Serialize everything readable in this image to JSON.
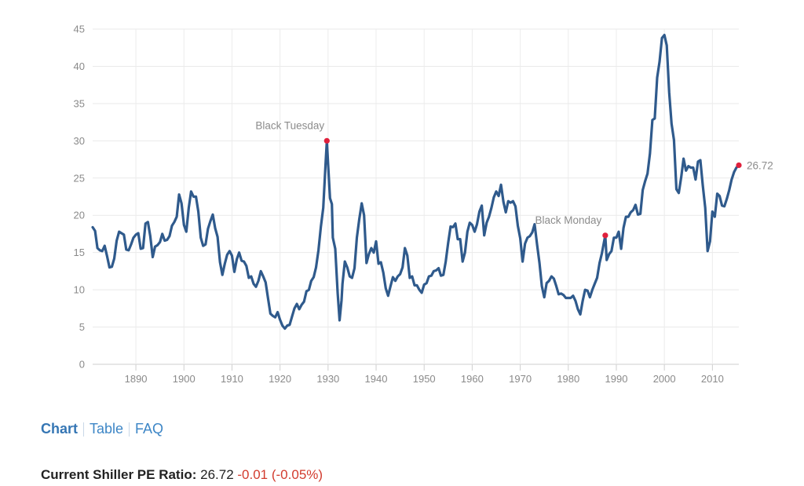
{
  "chart_data": {
    "type": "line",
    "title": "",
    "xlabel": "",
    "ylabel": "",
    "xlim": [
      1881,
      2015.5
    ],
    "ylim": [
      0,
      45
    ],
    "y_ticks": [
      0,
      5,
      10,
      15,
      20,
      25,
      30,
      35,
      40,
      45
    ],
    "x_ticks": [
      1890,
      1900,
      1910,
      1920,
      1930,
      1940,
      1950,
      1960,
      1970,
      1980,
      1990,
      2000,
      2010
    ],
    "grid": true,
    "line_color": "#2f5a8c",
    "marker_color": "#e0203c",
    "series": [
      {
        "name": "Shiller PE Ratio",
        "points": [
          [
            1881,
            18.4
          ],
          [
            1881.5,
            17.9
          ],
          [
            1882,
            15.6
          ],
          [
            1882.5,
            15.3
          ],
          [
            1883,
            15.2
          ],
          [
            1883.5,
            15.9
          ],
          [
            1884,
            14.5
          ],
          [
            1884.5,
            13.0
          ],
          [
            1885,
            13.1
          ],
          [
            1885.5,
            14.2
          ],
          [
            1886,
            16.6
          ],
          [
            1886.5,
            17.8
          ],
          [
            1887,
            17.6
          ],
          [
            1887.5,
            17.4
          ],
          [
            1888,
            15.4
          ],
          [
            1888.5,
            15.3
          ],
          [
            1889,
            16.1
          ],
          [
            1889.5,
            17.0
          ],
          [
            1890,
            17.4
          ],
          [
            1890.5,
            17.6
          ],
          [
            1891,
            15.5
          ],
          [
            1891.5,
            15.6
          ],
          [
            1892,
            18.9
          ],
          [
            1892.5,
            19.1
          ],
          [
            1893,
            17.2
          ],
          [
            1893.5,
            14.4
          ],
          [
            1894,
            15.8
          ],
          [
            1894.5,
            16.0
          ],
          [
            1895,
            16.4
          ],
          [
            1895.5,
            17.5
          ],
          [
            1896,
            16.6
          ],
          [
            1896.5,
            16.7
          ],
          [
            1897,
            17.2
          ],
          [
            1897.5,
            18.6
          ],
          [
            1898,
            19.1
          ],
          [
            1898.5,
            19.8
          ],
          [
            1899,
            22.8
          ],
          [
            1899.5,
            21.6
          ],
          [
            1900,
            18.7
          ],
          [
            1900.5,
            17.8
          ],
          [
            1901,
            21.0
          ],
          [
            1901.5,
            23.2
          ],
          [
            1902,
            22.5
          ],
          [
            1902.5,
            22.5
          ],
          [
            1903,
            20.5
          ],
          [
            1903.5,
            17.0
          ],
          [
            1904,
            15.9
          ],
          [
            1904.5,
            16.1
          ],
          [
            1905,
            18.2
          ],
          [
            1905.5,
            19.2
          ],
          [
            1906,
            20.1
          ],
          [
            1906.5,
            18.3
          ],
          [
            1907,
            17.1
          ],
          [
            1907.5,
            13.7
          ],
          [
            1908,
            12.0
          ],
          [
            1908.5,
            13.5
          ],
          [
            1909,
            14.7
          ],
          [
            1909.5,
            15.2
          ],
          [
            1910,
            14.6
          ],
          [
            1910.5,
            12.4
          ],
          [
            1911,
            14.1
          ],
          [
            1911.5,
            15.0
          ],
          [
            1912,
            13.9
          ],
          [
            1912.5,
            13.8
          ],
          [
            1913,
            13.2
          ],
          [
            1913.5,
            11.6
          ],
          [
            1914,
            11.8
          ],
          [
            1914.5,
            10.8
          ],
          [
            1915,
            10.4
          ],
          [
            1915.5,
            11.2
          ],
          [
            1916,
            12.5
          ],
          [
            1916.5,
            11.8
          ],
          [
            1917,
            11.0
          ],
          [
            1917.5,
            8.9
          ],
          [
            1918,
            6.8
          ],
          [
            1918.5,
            6.5
          ],
          [
            1919,
            6.3
          ],
          [
            1919.5,
            7.0
          ],
          [
            1920,
            6.0
          ],
          [
            1920.5,
            5.2
          ],
          [
            1921,
            4.8
          ],
          [
            1921.5,
            5.2
          ],
          [
            1922,
            5.3
          ],
          [
            1922.5,
            6.4
          ],
          [
            1923,
            7.5
          ],
          [
            1923.5,
            8.1
          ],
          [
            1924,
            7.4
          ],
          [
            1924.5,
            8.0
          ],
          [
            1925,
            8.4
          ],
          [
            1925.5,
            9.8
          ],
          [
            1926,
            10.0
          ],
          [
            1926.5,
            11.2
          ],
          [
            1927,
            11.7
          ],
          [
            1927.5,
            13.0
          ],
          [
            1928,
            15.3
          ],
          [
            1928.5,
            18.5
          ],
          [
            1929,
            21.0
          ],
          [
            1929.5,
            27.2
          ],
          [
            1929.75,
            30.0
          ],
          [
            1930,
            27.0
          ],
          [
            1930.4,
            22.3
          ],
          [
            1930.8,
            21.5
          ],
          [
            1931,
            17.0
          ],
          [
            1931.5,
            15.5
          ],
          [
            1932,
            9.5
          ],
          [
            1932.4,
            5.9
          ],
          [
            1932.8,
            8.6
          ],
          [
            1933,
            10.8
          ],
          [
            1933.5,
            13.8
          ],
          [
            1934,
            13.0
          ],
          [
            1934.5,
            11.8
          ],
          [
            1935,
            11.6
          ],
          [
            1935.5,
            12.9
          ],
          [
            1936,
            17.0
          ],
          [
            1936.5,
            19.5
          ],
          [
            1937,
            21.6
          ],
          [
            1937.5,
            20.0
          ],
          [
            1938,
            13.6
          ],
          [
            1938.5,
            14.8
          ],
          [
            1939,
            15.6
          ],
          [
            1939.5,
            15.0
          ],
          [
            1940,
            16.5
          ],
          [
            1940.5,
            13.5
          ],
          [
            1941,
            13.7
          ],
          [
            1941.5,
            12.3
          ],
          [
            1942,
            10.2
          ],
          [
            1942.5,
            9.2
          ],
          [
            1943,
            10.5
          ],
          [
            1943.5,
            11.7
          ],
          [
            1944,
            11.2
          ],
          [
            1944.5,
            11.8
          ],
          [
            1945,
            12.1
          ],
          [
            1945.5,
            13.0
          ],
          [
            1946,
            15.6
          ],
          [
            1946.5,
            14.6
          ],
          [
            1947,
            11.6
          ],
          [
            1947.5,
            11.8
          ],
          [
            1948,
            10.6
          ],
          [
            1948.5,
            10.6
          ],
          [
            1949,
            10.0
          ],
          [
            1949.5,
            9.6
          ],
          [
            1950,
            10.7
          ],
          [
            1950.5,
            10.9
          ],
          [
            1951,
            11.8
          ],
          [
            1951.5,
            11.9
          ],
          [
            1952,
            12.5
          ],
          [
            1952.5,
            12.6
          ],
          [
            1953,
            12.9
          ],
          [
            1953.5,
            11.9
          ],
          [
            1954,
            12.0
          ],
          [
            1954.5,
            13.8
          ],
          [
            1955,
            16.3
          ],
          [
            1955.5,
            18.5
          ],
          [
            1956,
            18.4
          ],
          [
            1956.5,
            18.9
          ],
          [
            1957,
            16.8
          ],
          [
            1957.5,
            16.8
          ],
          [
            1958,
            13.8
          ],
          [
            1958.5,
            15.0
          ],
          [
            1959,
            17.8
          ],
          [
            1959.5,
            19.0
          ],
          [
            1960,
            18.7
          ],
          [
            1960.5,
            17.8
          ],
          [
            1961,
            18.8
          ],
          [
            1961.5,
            20.5
          ],
          [
            1962,
            21.3
          ],
          [
            1962.5,
            17.3
          ],
          [
            1963,
            19.0
          ],
          [
            1963.5,
            19.8
          ],
          [
            1964,
            21.0
          ],
          [
            1964.5,
            22.4
          ],
          [
            1965,
            23.2
          ],
          [
            1965.5,
            22.6
          ],
          [
            1966,
            24.1
          ],
          [
            1966.5,
            21.8
          ],
          [
            1967,
            20.4
          ],
          [
            1967.5,
            21.9
          ],
          [
            1968,
            21.7
          ],
          [
            1968.5,
            21.9
          ],
          [
            1969,
            21.2
          ],
          [
            1969.5,
            18.6
          ],
          [
            1970,
            16.9
          ],
          [
            1970.5,
            13.8
          ],
          [
            1971,
            16.2
          ],
          [
            1971.5,
            17.0
          ],
          [
            1972,
            17.2
          ],
          [
            1972.5,
            17.7
          ],
          [
            1973,
            18.8
          ],
          [
            1973.5,
            16.1
          ],
          [
            1974,
            13.6
          ],
          [
            1974.5,
            10.5
          ],
          [
            1975,
            9.0
          ],
          [
            1975.5,
            10.9
          ],
          [
            1976,
            11.2
          ],
          [
            1976.5,
            11.8
          ],
          [
            1977,
            11.5
          ],
          [
            1977.5,
            10.5
          ],
          [
            1978,
            9.4
          ],
          [
            1978.5,
            9.5
          ],
          [
            1979,
            9.3
          ],
          [
            1979.5,
            8.9
          ],
          [
            1980,
            8.9
          ],
          [
            1980.5,
            8.9
          ],
          [
            1981,
            9.2
          ],
          [
            1981.5,
            8.5
          ],
          [
            1982,
            7.4
          ],
          [
            1982.5,
            6.7
          ],
          [
            1983,
            8.5
          ],
          [
            1983.5,
            10.0
          ],
          [
            1984,
            9.9
          ],
          [
            1984.5,
            9.0
          ],
          [
            1985,
            10.0
          ],
          [
            1985.5,
            10.8
          ],
          [
            1986,
            11.6
          ],
          [
            1986.5,
            13.6
          ],
          [
            1987,
            14.9
          ],
          [
            1987.7,
            17.3
          ],
          [
            1988,
            14.0
          ],
          [
            1988.5,
            14.8
          ],
          [
            1989,
            15.2
          ],
          [
            1989.5,
            17.0
          ],
          [
            1990,
            17.0
          ],
          [
            1990.5,
            17.8
          ],
          [
            1991,
            15.5
          ],
          [
            1991.5,
            18.3
          ],
          [
            1992,
            19.8
          ],
          [
            1992.5,
            19.8
          ],
          [
            1993,
            20.4
          ],
          [
            1993.5,
            20.7
          ],
          [
            1994,
            21.4
          ],
          [
            1994.5,
            20.1
          ],
          [
            1995,
            20.2
          ],
          [
            1995.5,
            23.4
          ],
          [
            1996,
            24.6
          ],
          [
            1996.5,
            25.6
          ],
          [
            1997,
            28.3
          ],
          [
            1997.5,
            32.8
          ],
          [
            1998,
            33.0
          ],
          [
            1998.5,
            38.5
          ],
          [
            1999,
            40.6
          ],
          [
            1999.5,
            43.8
          ],
          [
            2000,
            44.2
          ],
          [
            2000.5,
            42.8
          ],
          [
            2001,
            36.5
          ],
          [
            2001.5,
            32.3
          ],
          [
            2002,
            30.1
          ],
          [
            2002.5,
            23.5
          ],
          [
            2003,
            23.0
          ],
          [
            2003.5,
            25.1
          ],
          [
            2004,
            27.6
          ],
          [
            2004.5,
            26.0
          ],
          [
            2005,
            26.6
          ],
          [
            2005.5,
            26.4
          ],
          [
            2006,
            26.4
          ],
          [
            2006.5,
            24.8
          ],
          [
            2007,
            27.2
          ],
          [
            2007.5,
            27.4
          ],
          [
            2008,
            24.0
          ],
          [
            2008.5,
            21.0
          ],
          [
            2009,
            15.2
          ],
          [
            2009.5,
            16.5
          ],
          [
            2010,
            20.5
          ],
          [
            2010.5,
            19.8
          ],
          [
            2011,
            22.9
          ],
          [
            2011.5,
            22.6
          ],
          [
            2012,
            21.3
          ],
          [
            2012.5,
            21.2
          ],
          [
            2013,
            22.2
          ],
          [
            2013.5,
            23.4
          ],
          [
            2014,
            24.8
          ],
          [
            2014.5,
            25.8
          ],
          [
            2015,
            26.4
          ],
          [
            2015.5,
            26.72
          ]
        ]
      }
    ],
    "annotations": [
      {
        "label": "Black Tuesday",
        "x": 1929.75,
        "y": 30.0
      },
      {
        "label": "Black Monday",
        "x": 1987.7,
        "y": 17.3
      },
      {
        "label": "26.72",
        "x": 2015.5,
        "y": 26.72
      }
    ]
  },
  "nav": {
    "chart": "Chart",
    "table": "Table",
    "faq": "FAQ"
  },
  "current": {
    "label": "Current Shiller PE Ratio:",
    "value": "26.72",
    "change": "-0.01 (-0.05%)"
  }
}
